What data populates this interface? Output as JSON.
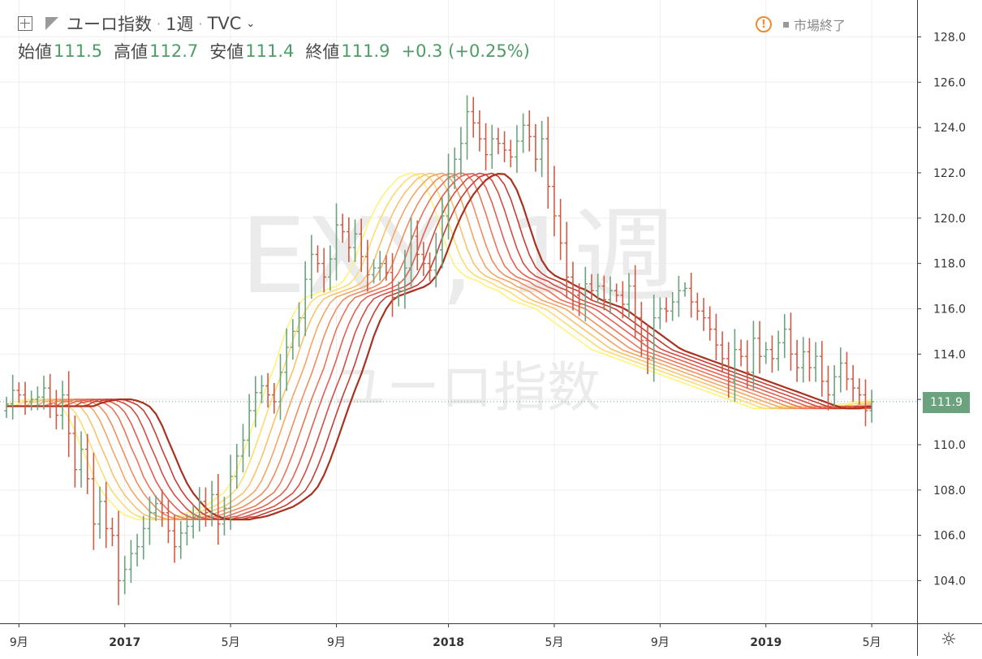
{
  "header": {
    "symbol_name": "ユーロ指数",
    "interval": "1週",
    "exchange": "TVC",
    "ohlc": [
      {
        "label": "始値",
        "value": "111.5"
      },
      {
        "label": "高値",
        "value": "112.7"
      },
      {
        "label": "安値",
        "value": "111.4"
      },
      {
        "label": "終値",
        "value": "111.9"
      }
    ],
    "change": "+0.3 (+0.25%)",
    "market_status": "市場終了",
    "icons": [
      "add-symbol-icon",
      "flag-icon",
      "chevron-down-icon",
      "warning-icon",
      "settings-icon"
    ]
  },
  "watermark": {
    "main": "EXY, 1週",
    "sub": "ユーロ指数"
  },
  "last_price_label": "111.9",
  "colors": {
    "up": "#6ba37e",
    "down": "#d15a45",
    "grid": "#efefef",
    "ribbon": [
      "#fff27a",
      "#fbdc73",
      "#f9c26c",
      "#f5a666",
      "#f08d5f",
      "#ea7558",
      "#e26051",
      "#d44d42",
      "#c53f35",
      "#a8321f"
    ]
  },
  "chart_data": {
    "type": "ohlc",
    "interval": "1週",
    "ylim": [
      103,
      129.5
    ],
    "yticks": [
      "104.0",
      "106.0",
      "108.0",
      "110.0",
      "112.0",
      "114.0",
      "116.0",
      "118.0",
      "120.0",
      "122.0",
      "124.0",
      "126.0",
      "128.0"
    ],
    "xticks": [
      {
        "bar": 2,
        "label": "9月"
      },
      {
        "bar": 19,
        "label": "2017"
      },
      {
        "bar": 36,
        "label": "5月"
      },
      {
        "bar": 53,
        "label": "9月"
      },
      {
        "bar": 71,
        "label": "2018"
      },
      {
        "bar": 88,
        "label": "5月"
      },
      {
        "bar": 105,
        "label": "9月"
      },
      {
        "bar": 122,
        "label": "2019"
      },
      {
        "bar": 139,
        "label": "5月"
      }
    ],
    "closes": [
      111.8,
      112.4,
      112.2,
      111.9,
      112.0,
      112.1,
      112.5,
      111.8,
      111.3,
      112.2,
      110.5,
      108.9,
      109.8,
      108.5,
      106.5,
      107.5,
      106.3,
      106.0,
      104.0,
      104.5,
      105.2,
      105.5,
      106.3,
      107.0,
      107.4,
      107.0,
      106.2,
      105.5,
      106.1,
      106.4,
      106.8,
      107.5,
      107.0,
      107.8,
      106.5,
      107.2,
      108.6,
      109.5,
      110.2,
      111.5,
      112.3,
      112.6,
      112.2,
      111.9,
      113.2,
      114.3,
      115.0,
      115.6,
      117.3,
      118.4,
      118.0,
      117.4,
      118.2,
      119.7,
      119.4,
      118.7,
      119.3,
      118.3,
      117.5,
      117.8,
      118.0,
      117.6,
      116.5,
      116.8,
      117.8,
      119.2,
      118.4,
      118.0,
      117.7,
      118.6,
      120.1,
      121.8,
      122.6,
      123.3,
      124.7,
      124.2,
      123.5,
      122.8,
      123.5,
      123.3,
      123.0,
      122.7,
      123.4,
      124.1,
      123.6,
      122.6,
      123.5,
      121.4,
      120.1,
      118.9,
      117.4,
      116.6,
      116.2,
      117.1,
      116.8,
      117.0,
      116.4,
      116.8,
      116.6,
      116.2,
      117.0,
      115.6,
      114.6,
      113.8,
      115.6,
      116.0,
      115.9,
      116.3,
      116.8,
      116.9,
      116.3,
      115.9,
      115.6,
      115.1,
      114.4,
      113.8,
      112.8,
      114.2,
      113.9,
      113.2,
      114.7,
      113.9,
      114.2,
      113.8,
      114.5,
      115.1,
      114.0,
      113.4,
      114.1,
      113.4,
      113.9,
      112.8,
      112.2,
      113.0,
      113.6,
      112.9,
      112.5,
      112.2,
      111.5,
      111.9
    ],
    "ribbon_fast_ma": [
      111.7,
      111.9,
      111.9,
      112.0,
      112.0,
      112.0,
      112.0,
      111.9,
      111.8,
      111.6,
      111.2,
      110.6,
      109.9,
      109.3,
      108.6,
      108.1,
      107.7,
      107.4,
      107.1,
      106.9,
      106.8,
      106.7,
      106.7,
      106.7,
      106.7,
      106.7,
      106.8,
      106.8,
      106.9,
      107.0,
      107.1,
      107.2,
      107.3,
      107.5,
      107.7,
      107.9,
      108.3,
      108.9,
      109.6,
      110.4,
      111.2,
      112.0,
      112.7,
      113.4,
      114.3,
      115.1,
      115.7,
      116.2,
      116.5,
      116.6,
      116.7,
      116.8,
      116.9,
      117.0,
      117.2,
      117.6,
      118.2,
      119.0,
      119.7,
      120.3,
      120.8,
      121.2,
      121.5,
      121.8,
      121.9,
      122.0,
      121.9,
      121.6,
      121.0,
      120.2,
      119.3,
      118.5,
      117.9,
      117.6,
      117.4,
      117.3,
      117.2,
      117.0,
      116.9,
      116.8,
      116.6,
      116.4,
      116.3,
      116.2,
      116.1,
      116.0,
      115.8,
      115.6,
      115.4,
      115.2,
      115.0,
      114.8,
      114.6,
      114.4,
      114.2,
      114.1,
      114.0,
      113.9,
      113.8,
      113.7,
      113.6,
      113.5,
      113.4,
      113.3,
      113.2,
      113.1,
      113.0,
      112.9,
      112.8,
      112.7,
      112.6,
      112.5,
      112.4,
      112.3,
      112.2,
      112.1,
      112.0,
      111.9,
      111.8,
      111.7,
      111.6,
      111.6,
      111.6,
      111.6,
      111.7,
      111.7,
      111.7,
      111.7,
      111.6,
      111.6,
      111.6,
      111.6,
      111.6,
      111.7,
      111.8,
      111.8,
      111.9,
      111.9,
      111.9,
      112.0
    ]
  }
}
